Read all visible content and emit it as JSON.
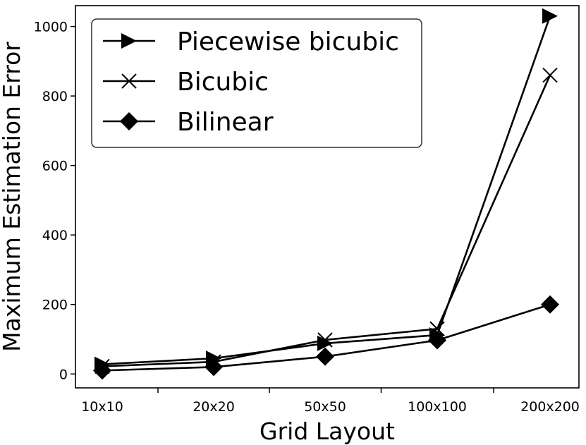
{
  "chart_data": {
    "type": "line",
    "categories": [
      "10x10",
      "20x20",
      "50x50",
      "100x100",
      "200x200"
    ],
    "xlabel": "Grid Layout",
    "ylabel": "Maximum Estimation Error",
    "ylim": [
      -40,
      1060
    ],
    "yticks": [
      0,
      200,
      400,
      600,
      800,
      1000
    ],
    "grid": false,
    "legend_position": "top-left",
    "series": [
      {
        "name": "Piecewise bicubic",
        "marker": "triangle-right",
        "color": "#000000",
        "values": [
          28,
          45,
          88,
          112,
          1030
        ]
      },
      {
        "name": "Bicubic",
        "marker": "x",
        "color": "#000000",
        "values": [
          22,
          35,
          98,
          130,
          860
        ]
      },
      {
        "name": "Bilinear",
        "marker": "diamond",
        "color": "#000000",
        "values": [
          10,
          20,
          50,
          97,
          200
        ]
      }
    ]
  }
}
